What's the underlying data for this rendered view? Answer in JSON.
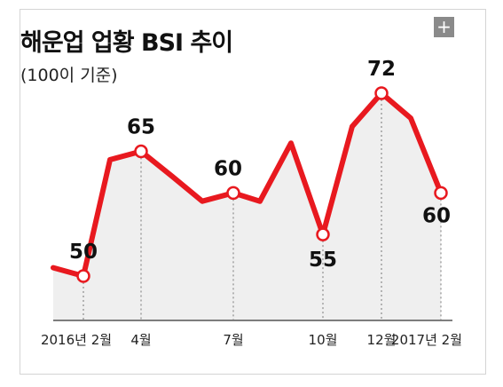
{
  "header": {
    "title": "해운업 업황 BSI 추이",
    "subtitle": "(100이 기준)",
    "expand_icon": "plus-icon",
    "expand_glyph": "+"
  },
  "chart_data": {
    "type": "area",
    "title": "해운업 업황 BSI 추이",
    "subtitle": "(100이 기준)",
    "xlabel": "",
    "ylabel": "",
    "ylim": [
      30,
      80
    ],
    "line_color": "#e8191f",
    "fill_color": "#efefef",
    "grid": false,
    "points": [
      {
        "x": 0,
        "y": 51
      },
      {
        "x": 1,
        "y": 50,
        "value_label": "50",
        "tick_label": "2016년 2월"
      },
      {
        "x": 2,
        "y": 64
      },
      {
        "x": 3,
        "y": 65,
        "value_label": "65",
        "tick_label": "4월"
      },
      {
        "x": 4,
        "y": 62
      },
      {
        "x": 5,
        "y": 59
      },
      {
        "x": 6,
        "y": 60,
        "value_label": "60",
        "tick_label": "7월"
      },
      {
        "x": 7,
        "y": 59
      },
      {
        "x": 8,
        "y": 66
      },
      {
        "x": 9,
        "y": 55,
        "value_label": "55",
        "tick_label": "10월"
      },
      {
        "x": 10,
        "y": 68
      },
      {
        "x": 11,
        "y": 72,
        "value_label": "72",
        "tick_label": "12월"
      },
      {
        "x": 12,
        "y": 69
      },
      {
        "x": 13,
        "y": 60,
        "value_label": "60",
        "tick_label": "2017년 2월"
      }
    ]
  }
}
